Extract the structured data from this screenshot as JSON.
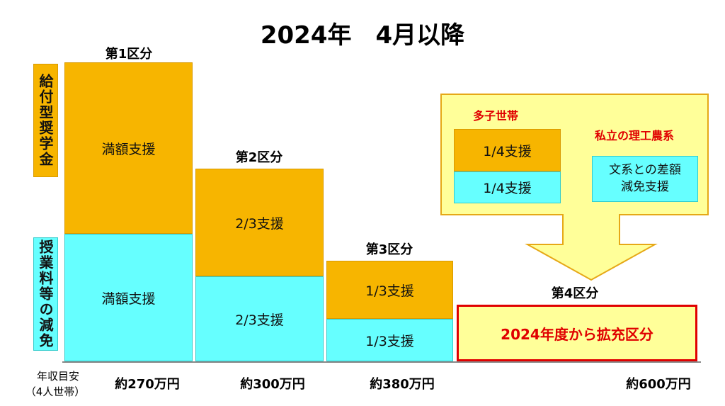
{
  "title": "2024年　4月以降",
  "side_labels": [
    "給付型奨学金",
    "授業料等の減免"
  ],
  "columns": [
    {
      "label": "第1区分",
      "top": "満額支援",
      "bottom": "満額支援"
    },
    {
      "label": "第2区分",
      "top": "2/3支援",
      "bottom": "2/3支援"
    },
    {
      "label": "第3区分",
      "top": "1/3支援",
      "bottom": "1/3支援"
    },
    {
      "label": "第4区分",
      "text": "2024年度から拡充区分"
    }
  ],
  "callout": {
    "group_label": "多子世帯",
    "top": "1/4支援",
    "bottom": "1/4支援",
    "private_label": "私立の理工農系",
    "private_text": [
      "文系との差額",
      "減免支援"
    ]
  },
  "income": {
    "label": "年収目安",
    "note": "（4人世帯）",
    "values": [
      "約270万円",
      "約300万円",
      "約380万円",
      "約600万円"
    ]
  }
}
